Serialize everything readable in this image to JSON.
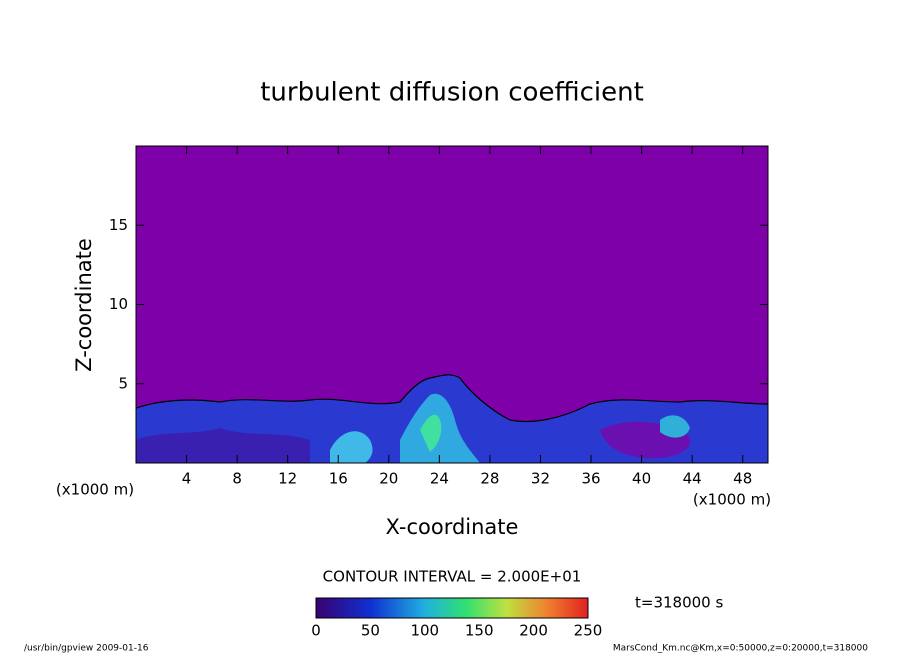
{
  "chart_data": {
    "type": "contour",
    "title": "turbulent diffusion coefficient",
    "xlabel": "X-coordinate",
    "ylabel": "Z-coordinate",
    "x_unit": "(x1000 m)",
    "xlim": [
      0,
      50
    ],
    "ylim": [
      0,
      20
    ],
    "xticks": [
      4,
      8,
      12,
      16,
      20,
      24,
      28,
      32,
      36,
      40,
      44,
      48
    ],
    "yticks": [
      5,
      10,
      15
    ],
    "contour_interval": "CONTOUR INTERVAL = 2.000E+01",
    "time": "t=318000 s",
    "colorbar": {
      "lim": [
        0,
        250
      ],
      "ticks": [
        0,
        50,
        100,
        150,
        200,
        250
      ]
    },
    "footer_left": "/usr/bin/gpview  2009-01-16",
    "footer_right": "MarsCond_Km.nc@Km,x=0:50000,z=0:20000,t=318000"
  }
}
